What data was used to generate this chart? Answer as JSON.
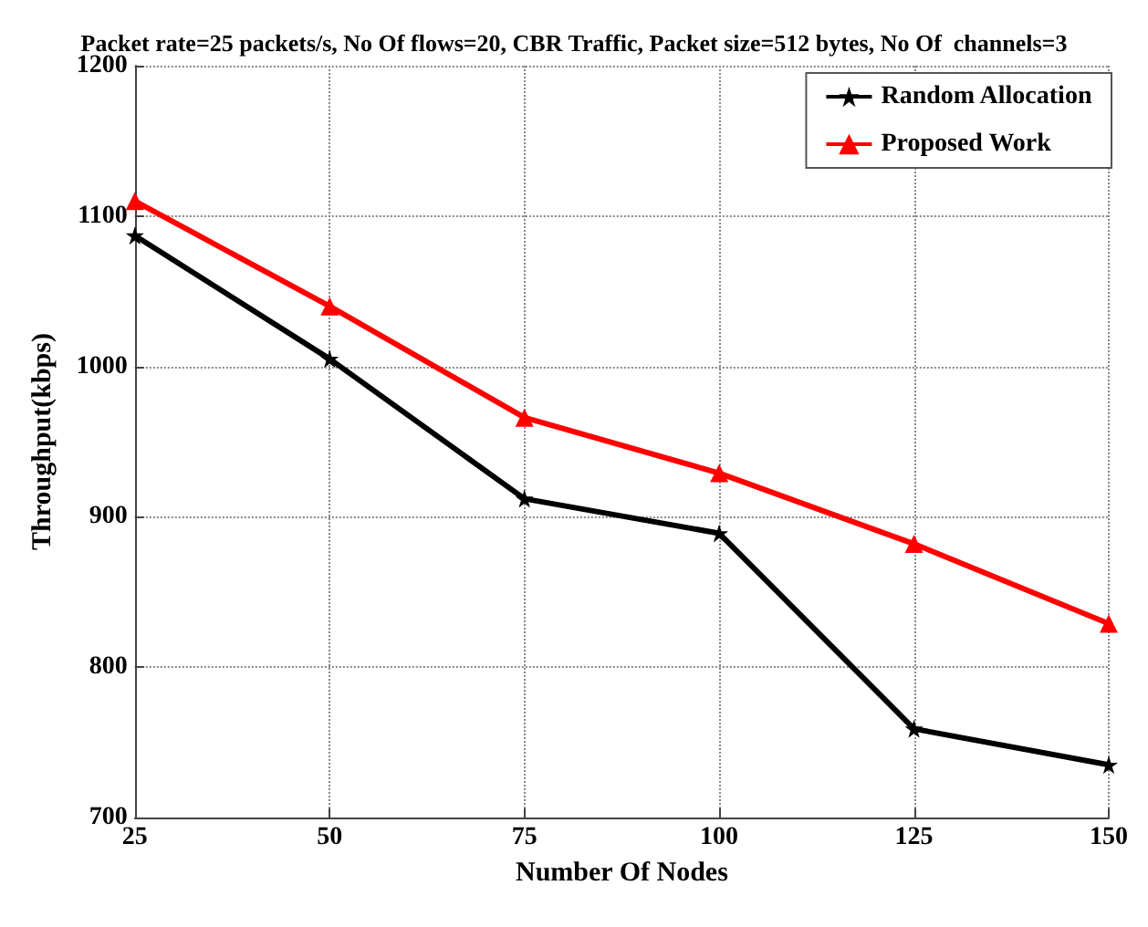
{
  "chart_data": {
    "type": "line",
    "title": "Packet rate=25 packets/s, No Of flows=20, CBR Traffic, Packet size=512 bytes, No Of  channels=3",
    "xlabel": "Number Of Nodes",
    "ylabel": "Throughput(kbps)",
    "x": [
      25,
      50,
      75,
      100,
      125,
      150
    ],
    "series": [
      {
        "name": "Random Allocation",
        "color": "#000000",
        "marker": "star",
        "values": [
          1087,
          1005,
          912,
          889,
          759,
          735
        ]
      },
      {
        "name": "Proposed Work",
        "color": "#ff0000",
        "marker": "triangle",
        "values": [
          1110,
          1040,
          966,
          929,
          882,
          829
        ]
      }
    ],
    "xlim": [
      25,
      150
    ],
    "xticks": [
      25,
      50,
      75,
      100,
      125,
      150
    ],
    "ylim": [
      700,
      1200
    ],
    "yticks": [
      700,
      800,
      900,
      1000,
      1100,
      1200
    ],
    "grid": true,
    "legend": "top right",
    "line_style": "solid"
  }
}
